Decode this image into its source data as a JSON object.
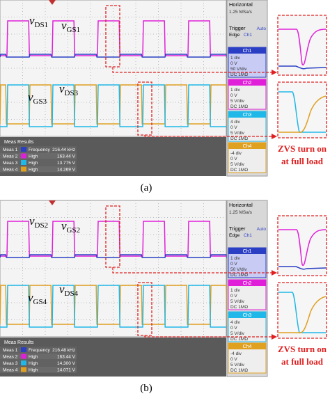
{
  "panels": [
    {
      "caption": "(a)",
      "labels": [
        {
          "symbol": "v",
          "subscript": "DS1"
        },
        {
          "symbol": "v",
          "subscript": "GS1"
        },
        {
          "symbol": "v",
          "subscript": "GS3"
        },
        {
          "symbol": "v",
          "subscript": "DS3"
        }
      ],
      "annotation": [
        "ZVS turn on",
        "at full load"
      ],
      "scope": {
        "horizontal": "Horizontal",
        "sample_rate": "1.25 MSa/s",
        "trigger": "Trigger",
        "edge": "Edge",
        "edge_source": "Ch1",
        "mode": "Auto",
        "channels": [
          {
            "name": "Ch1",
            "position": "1 div",
            "offset": "0 V",
            "scale": "50 V/div",
            "coupling": "DC 1MΩ"
          },
          {
            "name": "Ch2",
            "position": "1 div",
            "offset": "0 V",
            "scale": "5 V/div",
            "coupling": "DC 1MΩ"
          },
          {
            "name": "Ch3",
            "position": "4 div",
            "offset": "0 V",
            "scale": "5 V/div",
            "coupling": "DC 1MΩ"
          },
          {
            "name": "Ch4",
            "position": "-4 div",
            "offset": "0 V",
            "scale": "5 V/div",
            "coupling": "DC 1MΩ"
          }
        ],
        "meas_title": "Meas Results",
        "measurements": [
          {
            "name": "Meas 1",
            "type": "Frequency",
            "value": "216.44 kHz"
          },
          {
            "name": "Meas 2",
            "type": "High",
            "value": "163.44 V"
          },
          {
            "name": "Meas 3",
            "type": "High",
            "value": "13.775 V"
          },
          {
            "name": "Meas 4",
            "type": "High",
            "value": "14.269 V"
          }
        ]
      }
    },
    {
      "caption": "(b)",
      "labels": [
        {
          "symbol": "v",
          "subscript": "DS2"
        },
        {
          "symbol": "v",
          "subscript": "GS2"
        },
        {
          "symbol": "v",
          "subscript": "GS4"
        },
        {
          "symbol": "v",
          "subscript": "DS4"
        }
      ],
      "annotation": [
        "ZVS turn on",
        "at full load"
      ],
      "scope": {
        "horizontal": "Horizontal",
        "sample_rate": "1.25 MSa/s",
        "trigger": "Trigger",
        "edge": "Edge",
        "edge_source": "Ch1",
        "mode": "Auto",
        "channels": [
          {
            "name": "Ch1",
            "position": "1 div",
            "offset": "0 V",
            "scale": "50 V/div",
            "coupling": "DC 1MΩ"
          },
          {
            "name": "Ch2",
            "position": "1 div",
            "offset": "0 V",
            "scale": "5 V/div",
            "coupling": "DC 1MΩ"
          },
          {
            "name": "Ch3",
            "position": "4 div",
            "offset": "0 V",
            "scale": "5 V/div",
            "coupling": "DC 1MΩ"
          },
          {
            "name": "Ch4",
            "position": "-4 div",
            "offset": "0 V",
            "scale": "5 V/div",
            "coupling": "DC 1MΩ"
          }
        ],
        "meas_title": "Meas Results",
        "measurements": [
          {
            "name": "Meas 1",
            "type": "Frequency",
            "value": "216.48 kHz"
          },
          {
            "name": "Meas 2",
            "type": "High",
            "value": "163.44 V"
          },
          {
            "name": "Meas 3",
            "type": "High",
            "value": "14.300 V"
          },
          {
            "name": "Meas 4",
            "type": "High",
            "value": "14.071 V"
          }
        ]
      }
    }
  ]
}
